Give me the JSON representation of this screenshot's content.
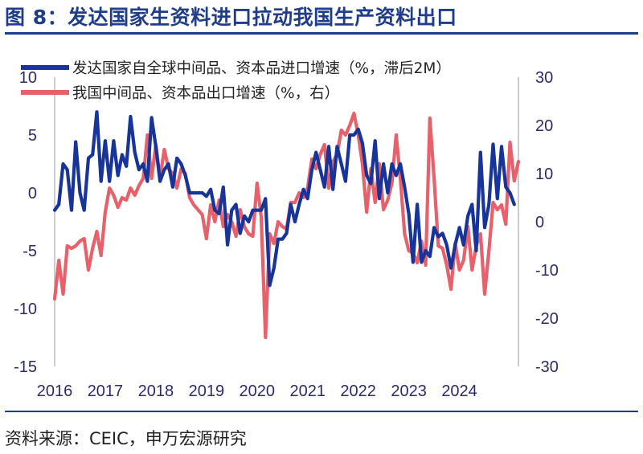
{
  "title": "图 8：发达国家生资料进口拉动我国生产资料出口",
  "source": "资料来源：CEIC，申万宏源研究",
  "colors": {
    "series1": "#16349a",
    "series2": "#e8606a",
    "title": "#1f3d8a",
    "axis": "#bbbbbb"
  },
  "chart_data": {
    "type": "line",
    "title": "",
    "x_start": "2016-01",
    "frequency": "monthly",
    "xticks": [
      "2016",
      "2017",
      "2018",
      "2019",
      "2020",
      "2021",
      "2022",
      "2023",
      "2024"
    ],
    "y_left": {
      "ylim": [
        -15,
        10
      ],
      "ticks": [
        "10",
        "5",
        "0",
        "-5",
        "-10",
        "-15"
      ]
    },
    "y_right": {
      "ylim": [
        -30,
        30
      ],
      "ticks": [
        "30",
        "20",
        "10",
        "0",
        "-10",
        "-20",
        "-30"
      ]
    },
    "series": [
      {
        "name": "发达国家自全球中间品、资本品进口增速（%，滞后2M）",
        "axis": "left",
        "values": [
          -1.5,
          -1.0,
          2.5,
          2.0,
          -1.5,
          4.4,
          0.0,
          -1.5,
          3.0,
          3.3,
          7.0,
          1.0,
          4.5,
          1.0,
          4.5,
          1.5,
          3.3,
          2.3,
          6.6,
          3.5,
          2.0,
          2.5,
          1.0,
          6.5,
          4.0,
          1.0,
          2.0,
          2.5,
          0.5,
          3.0,
          2.5,
          1.5,
          0.0,
          0.0,
          0.0,
          0.0,
          -0.3,
          0.3,
          -1.5,
          -1.8,
          0.5,
          -4.5,
          -1.5,
          -1.0,
          -3.5,
          -2.0,
          -2.5,
          -1.5,
          -1.5,
          -1.5,
          -0.5,
          -8.0,
          -6.5,
          -4.0,
          -4.0,
          -3.5,
          -1.0,
          -2.5,
          -1.0,
          0.3,
          -0.5,
          2.0,
          3.5,
          2.0,
          0.5,
          4.0,
          0.3,
          4.0,
          2.5,
          1.0,
          5.0,
          5.0,
          5.5,
          4.3,
          1.5,
          0.8,
          4.5,
          -0.5,
          2.5,
          0.0,
          2.5,
          1.5,
          2.5,
          0.5,
          -1.8,
          -6.0,
          -1.0,
          -6.0,
          -5.0,
          -5.5,
          -3.0,
          -3.8,
          -3.5,
          -4.5,
          -6.5,
          -4.5,
          -3.0,
          -4.5,
          -2.0,
          -1.0,
          -5.0,
          3.5,
          -3.0,
          -1.0,
          4.2,
          -0.5,
          4.0,
          0.5,
          0.0,
          -1.0
        ]
      },
      {
        "name": "我国中间品、资本品出口增速（%，右）",
        "axis": "right",
        "values": [
          -16.0,
          -8.0,
          -15.0,
          -5.0,
          -5.5,
          -5.0,
          -4.0,
          -3.5,
          -10.0,
          -5.5,
          -2.0,
          -7.0,
          2.0,
          7.0,
          5.5,
          3.0,
          5.0,
          4.5,
          7.0,
          5.5,
          7.5,
          9.0,
          18.0,
          9.0,
          16.0,
          9.0,
          15.0,
          11.0,
          10.0,
          7.0,
          11.0,
          10.0,
          5.0,
          3.5,
          2.5,
          1.5,
          -3.5,
          3.5,
          0.0,
          4.5,
          -1.0,
          1.5,
          0.0,
          -3.0,
          2.5,
          -1.0,
          -2.5,
          -3.0,
          8.0,
          1.0,
          -24.0,
          -2.5,
          -4.5,
          0.0,
          -1.0,
          -1.5,
          4.0,
          4.0,
          6.0,
          5.0,
          7.0,
          13.0,
          11.0,
          14.0,
          16.0,
          7.0,
          12.5,
          14.0,
          19.0,
          18.0,
          20.0,
          22.5,
          18.0,
          12.0,
          2.0,
          11.0,
          4.0,
          12.0,
          2.5,
          4.5,
          8.0,
          18.0,
          9.0,
          -2.5,
          -6.0,
          -6.5,
          -8.5,
          -4.0,
          -9.0,
          21.5,
          9.0,
          -5.0,
          -5.5,
          -9.0,
          -14.0,
          -4.5,
          -10.0,
          -8.0,
          -1.0,
          -10.0,
          -5.0,
          -2.5,
          -15.0,
          -6.0,
          4.0,
          2.5,
          3.5,
          -0.5,
          16.5,
          8.5,
          12.5
        ]
      }
    ],
    "legend_position": "top-left",
    "grid": false
  }
}
